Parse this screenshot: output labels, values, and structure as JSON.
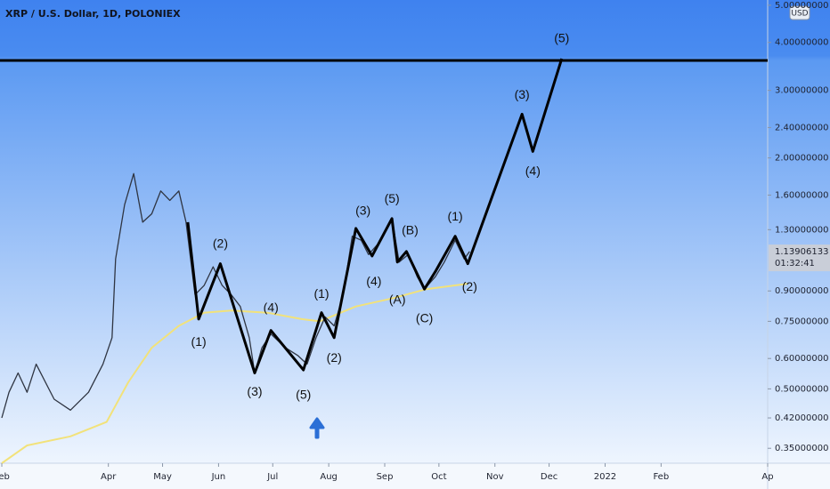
{
  "chart_data": {
    "type": "line",
    "title": "XRP / U.S. Dollar, 1D, POLONIEX",
    "currency": "USD",
    "log_scale": true,
    "xlim": [
      -1,
      424
    ],
    "ylim": [
      0.32,
      5.16
    ],
    "xticks": [
      {
        "value": 0,
        "label": "Feb"
      },
      {
        "value": 59,
        "label": "Apr"
      },
      {
        "value": 89,
        "label": "May"
      },
      {
        "value": 120,
        "label": "Jun"
      },
      {
        "value": 150,
        "label": "Jul"
      },
      {
        "value": 181,
        "label": "Aug"
      },
      {
        "value": 212,
        "label": "Sep"
      },
      {
        "value": 242,
        "label": "Oct"
      },
      {
        "value": 273,
        "label": "Nov"
      },
      {
        "value": 303,
        "label": "Dec"
      },
      {
        "value": 334,
        "label": "2022"
      },
      {
        "value": 365,
        "label": "Feb"
      },
      {
        "value": 424,
        "label": "Ap"
      }
    ],
    "yticks": [
      {
        "value": 0.35,
        "label": "0.35000000"
      },
      {
        "value": 0.42,
        "label": "0.42000000"
      },
      {
        "value": 0.5,
        "label": "0.50000000"
      },
      {
        "value": 0.6,
        "label": "0.60000000"
      },
      {
        "value": 0.75,
        "label": "0.75000000"
      },
      {
        "value": 0.9,
        "label": "0.90000000"
      },
      {
        "value": 1.3,
        "label": "1.30000000"
      },
      {
        "value": 1.6,
        "label": "1.60000000"
      },
      {
        "value": 2.0,
        "label": "2.00000000"
      },
      {
        "value": 2.4,
        "label": "2.40000000"
      },
      {
        "value": 3.0,
        "label": "3.00000000"
      },
      {
        "value": 4.0,
        "label": "4.00000000"
      },
      {
        "value": 5.0,
        "label": "5.00000000"
      }
    ],
    "price": {
      "color": "#2f3542",
      "x": [
        0,
        4,
        9,
        14,
        19,
        29,
        38,
        48,
        56,
        61,
        63,
        68,
        73,
        78,
        83,
        88,
        93,
        98,
        102,
        107,
        112,
        117,
        122,
        127,
        132,
        137,
        140,
        144,
        149,
        157,
        164,
        169,
        174,
        179,
        184,
        189,
        194,
        199,
        203,
        208,
        216,
        220,
        225,
        230,
        234,
        240,
        245,
        251,
        256,
        259
      ],
      "values": [
        0.42,
        0.49,
        0.55,
        0.49,
        0.58,
        0.47,
        0.44,
        0.49,
        0.58,
        0.68,
        1.09,
        1.51,
        1.82,
        1.36,
        1.43,
        1.64,
        1.55,
        1.64,
        1.36,
        0.88,
        0.93,
        1.04,
        0.93,
        0.88,
        0.82,
        0.68,
        0.55,
        0.64,
        0.695,
        0.64,
        0.61,
        0.58,
        0.68,
        0.77,
        0.73,
        0.88,
        1.25,
        1.22,
        1.12,
        1.19,
        1.39,
        1.07,
        1.12,
        0.98,
        0.91,
        0.98,
        1.07,
        1.22,
        1.09,
        1.14
      ]
    },
    "moving_average": {
      "color": "#f2e27a",
      "x": [
        0,
        14,
        38,
        58,
        70,
        83,
        98,
        112,
        127,
        147,
        166,
        176,
        196,
        216,
        235,
        258
      ],
      "values": [
        0.32,
        0.356,
        0.376,
        0.41,
        0.52,
        0.64,
        0.73,
        0.79,
        0.8,
        0.79,
        0.76,
        0.75,
        0.82,
        0.86,
        0.91,
        0.94
      ]
    },
    "wave": {
      "color": "#000000",
      "x": [
        103,
        109,
        121,
        140,
        149,
        167,
        177,
        184,
        196,
        205,
        216,
        219,
        224,
        234,
        240,
        251,
        258,
        288,
        294,
        310
      ],
      "values": [
        1.36,
        0.76,
        1.06,
        0.55,
        0.71,
        0.56,
        0.79,
        0.68,
        1.31,
        1.11,
        1.39,
        1.07,
        1.14,
        0.91,
        1.01,
        1.25,
        1.06,
        2.6,
        2.08,
        3.63
      ]
    },
    "horizontal_line": 3.59,
    "last_price": {
      "value": 1.13906133,
      "label": "1.13906133"
    },
    "countdown": "01:32:41",
    "annotations": [
      {
        "text": "(1)",
        "x": 109,
        "y": 0.66
      },
      {
        "text": "(2)",
        "x": 121,
        "y": 1.19
      },
      {
        "text": "(3)",
        "x": 140,
        "y": 0.49
      },
      {
        "text": "(4)",
        "x": 149,
        "y": 0.81
      },
      {
        "text": "(5)",
        "x": 167,
        "y": 0.48
      },
      {
        "text": "(1)",
        "x": 177,
        "y": 0.88
      },
      {
        "text": "(2)",
        "x": 184,
        "y": 0.6
      },
      {
        "text": "(3)",
        "x": 200,
        "y": 1.45
      },
      {
        "text": "(4)",
        "x": 206,
        "y": 0.95
      },
      {
        "text": "(5)",
        "x": 216,
        "y": 1.56
      },
      {
        "text": "(B)",
        "x": 226,
        "y": 1.29
      },
      {
        "text": "(A)",
        "x": 219,
        "y": 0.85
      },
      {
        "text": "(C)",
        "x": 234,
        "y": 0.76
      },
      {
        "text": "(1)",
        "x": 251,
        "y": 1.4
      },
      {
        "text": "(2)",
        "x": 259,
        "y": 0.92
      },
      {
        "text": "(3)",
        "x": 288,
        "y": 2.91
      },
      {
        "text": "(4)",
        "x": 294,
        "y": 1.84
      },
      {
        "text": "(5)",
        "x": 310,
        "y": 4.08
      }
    ]
  }
}
